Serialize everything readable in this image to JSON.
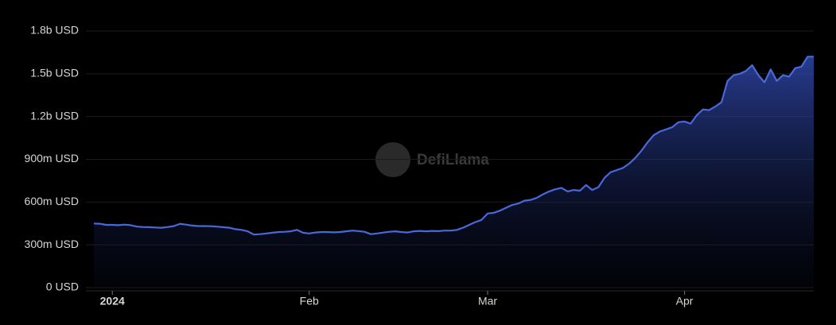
{
  "chart_data": {
    "type": "area",
    "watermark": "DefiLlama",
    "categories": [
      null,
      null,
      null,
      "2024",
      null,
      null,
      null,
      null,
      null,
      null,
      null,
      null,
      null,
      null,
      null,
      null,
      null,
      null,
      null,
      null,
      null,
      null,
      null,
      null,
      null,
      null,
      null,
      null,
      null,
      null,
      null,
      null,
      null,
      null,
      null,
      "Feb",
      null,
      null,
      null,
      null,
      null,
      null,
      null,
      null,
      null,
      null,
      null,
      null,
      null,
      null,
      null,
      null,
      null,
      null,
      null,
      null,
      null,
      null,
      null,
      null,
      null,
      null,
      null,
      null,
      "Mar",
      null,
      null,
      null,
      null,
      null,
      null,
      null,
      null,
      null,
      null,
      null,
      null,
      null,
      null,
      null,
      null,
      null,
      null,
      null,
      null,
      null,
      null,
      null,
      null,
      null,
      null,
      null,
      null,
      null,
      null,
      null,
      "Apr",
      null,
      null,
      null,
      null,
      null,
      null,
      null,
      null,
      null,
      null,
      null,
      null,
      null,
      null,
      null,
      null,
      null,
      null,
      null,
      null,
      null
    ],
    "series": [
      {
        "color": "#4a68d9",
        "values": [
          450000000,
          448000000,
          440000000,
          440000000,
          438000000,
          442000000,
          438000000,
          428000000,
          425000000,
          424000000,
          422000000,
          420000000,
          425000000,
          432000000,
          448000000,
          442000000,
          435000000,
          432000000,
          432000000,
          431000000,
          428000000,
          424000000,
          420000000,
          410000000,
          405000000,
          395000000,
          372000000,
          375000000,
          380000000,
          385000000,
          390000000,
          392000000,
          395000000,
          405000000,
          385000000,
          380000000,
          387000000,
          390000000,
          390000000,
          388000000,
          390000000,
          395000000,
          400000000,
          397000000,
          392000000,
          375000000,
          380000000,
          386000000,
          392000000,
          395000000,
          390000000,
          387000000,
          395000000,
          398000000,
          395000000,
          398000000,
          396000000,
          400000000,
          400000000,
          405000000,
          420000000,
          440000000,
          460000000,
          475000000,
          520000000,
          525000000,
          540000000,
          560000000,
          580000000,
          590000000,
          610000000,
          615000000,
          630000000,
          655000000,
          675000000,
          690000000,
          700000000,
          675000000,
          685000000,
          680000000,
          720000000,
          685000000,
          705000000,
          770000000,
          810000000,
          825000000,
          840000000,
          870000000,
          910000000,
          960000000,
          1020000000,
          1070000000,
          1095000000,
          1110000000,
          1125000000,
          1160000000,
          1165000000,
          1150000000,
          1210000000,
          1250000000,
          1245000000,
          1270000000,
          1300000000,
          1450000000,
          1490000000,
          1500000000,
          1520000000,
          1560000000,
          1490000000,
          1440000000,
          1530000000,
          1450000000,
          1490000000,
          1480000000,
          1540000000,
          1550000000,
          1620000000,
          1620000000
        ]
      }
    ],
    "ylim": [
      0,
      1800000000
    ],
    "yticks": [
      {
        "value": 0,
        "label": "0 USD"
      },
      {
        "value": 300000000,
        "label": "300m USD"
      },
      {
        "value": 600000000,
        "label": "600m USD"
      },
      {
        "value": 900000000,
        "label": "900m USD"
      },
      {
        "value": 1200000000,
        "label": "1.2b USD"
      },
      {
        "value": 1500000000,
        "label": "1.5b USD"
      },
      {
        "value": 1800000000,
        "label": "1.8b USD"
      }
    ],
    "grid": true
  }
}
